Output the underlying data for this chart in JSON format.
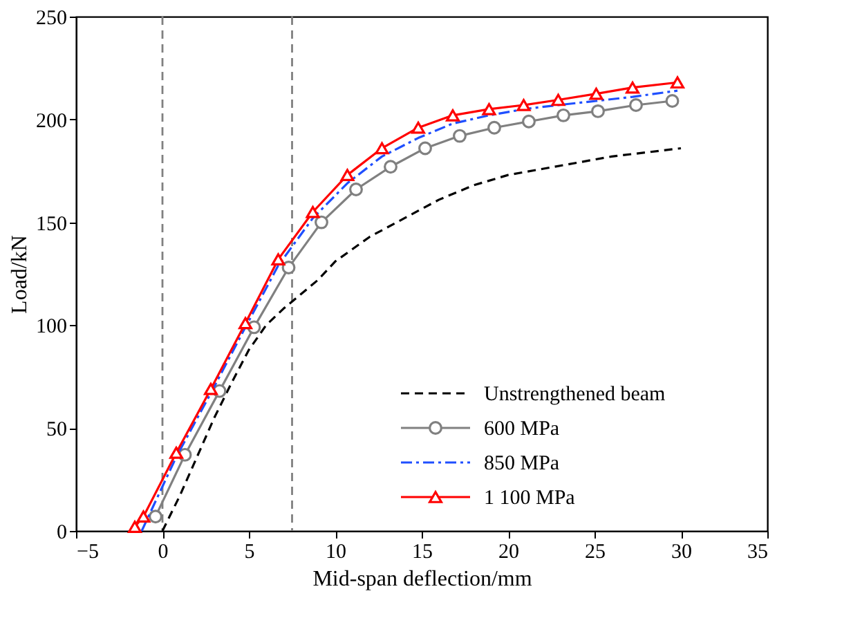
{
  "chart_data": {
    "type": "line",
    "xlabel": "Mid-span deflection/mm",
    "ylabel": "Load/kN",
    "xlim": [
      -5,
      35
    ],
    "xticks": [
      -5,
      0,
      5,
      10,
      15,
      20,
      25,
      30,
      35
    ],
    "ylim": [
      0,
      250
    ],
    "yticks": [
      0,
      50,
      100,
      150,
      200,
      250
    ],
    "grid": false,
    "legend": "bottom right",
    "ref_lines": [
      {
        "axis": "x",
        "value": 0,
        "color": "#808080",
        "line_style": "dashed"
      },
      {
        "axis": "x",
        "value": 7.5,
        "color": "#808080",
        "line_style": "dashed"
      }
    ],
    "series": [
      {
        "name": "Unstrengthened beam",
        "color": "#000000",
        "line_style": "dashed",
        "marker": "none",
        "x": [
          0,
          1,
          2,
          3,
          4,
          5,
          6,
          7,
          8,
          9,
          10,
          12,
          14,
          16,
          18,
          20,
          22,
          24,
          26,
          28,
          30
        ],
        "values": [
          0,
          17,
          36,
          55,
          72,
          88,
          100,
          108,
          115,
          122,
          131,
          143,
          152,
          161,
          168,
          173,
          176,
          179,
          182,
          184,
          186
        ]
      },
      {
        "name": "600 MPa",
        "color": "#808080",
        "line_style": "solid",
        "marker": "circle",
        "x": [
          -0.4,
          1.3,
          3.3,
          5.3,
          7.3,
          9.2,
          11.2,
          13.2,
          15.2,
          17.2,
          19.2,
          21.2,
          23.2,
          25.2,
          27.4,
          29.5
        ],
        "values": [
          7,
          37,
          68,
          99,
          128,
          150,
          166,
          177,
          186,
          192,
          196,
          199,
          202,
          204,
          207,
          209
        ]
      },
      {
        "name": "850 MPa",
        "color": "#1f4fff",
        "line_style": "dashdot",
        "marker": "none",
        "x": [
          -1.2,
          0.8,
          2.8,
          4.8,
          6.7,
          8.7,
          10.7,
          12.7,
          14.8,
          16.8,
          18.9,
          20.9,
          22.9,
          25.1,
          27.2,
          29.8
        ],
        "values": [
          0,
          36,
          67,
          99,
          129,
          152,
          169,
          182,
          191,
          198,
          202,
          205,
          207,
          209,
          211,
          214
        ]
      },
      {
        "name": "1 100 MPa",
        "color": "#ff0000",
        "line_style": "solid",
        "marker": "triangle",
        "x": [
          -1.6,
          -1.1,
          0.8,
          2.8,
          4.8,
          6.7,
          8.7,
          10.7,
          12.7,
          14.8,
          16.8,
          18.9,
          20.9,
          22.9,
          25.1,
          27.2,
          29.8
        ],
        "values": [
          2,
          7,
          38,
          69,
          101,
          132,
          155,
          173,
          186,
          196,
          202,
          205,
          207,
          209.5,
          212.5,
          215.5,
          218
        ]
      }
    ]
  }
}
